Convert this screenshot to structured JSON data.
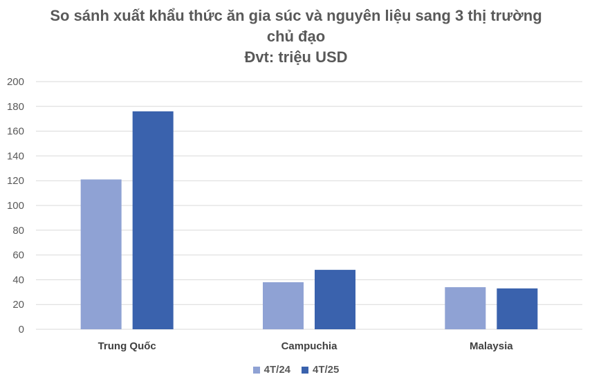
{
  "chart_data": {
    "type": "bar",
    "title_lines": [
      "So sánh xuất khẩu thức ăn gia súc và nguyên liệu sang 3 thị trường",
      "chủ đạo",
      "Đvt: triệu USD"
    ],
    "categories": [
      "Trung Quốc",
      "Campuchia",
      "Malaysia"
    ],
    "series": [
      {
        "name": "4T/24",
        "color": "#8FA2D4",
        "values": [
          121,
          38,
          34
        ]
      },
      {
        "name": "4T/25",
        "color": "#3A62AD",
        "values": [
          176,
          48,
          33
        ]
      }
    ],
    "ylim": [
      0,
      200
    ],
    "yticks": [
      "0",
      "20",
      "40",
      "60",
      "80",
      "100",
      "120",
      "140",
      "160",
      "180",
      "200"
    ],
    "grid": true,
    "legend_position": "bottom"
  }
}
